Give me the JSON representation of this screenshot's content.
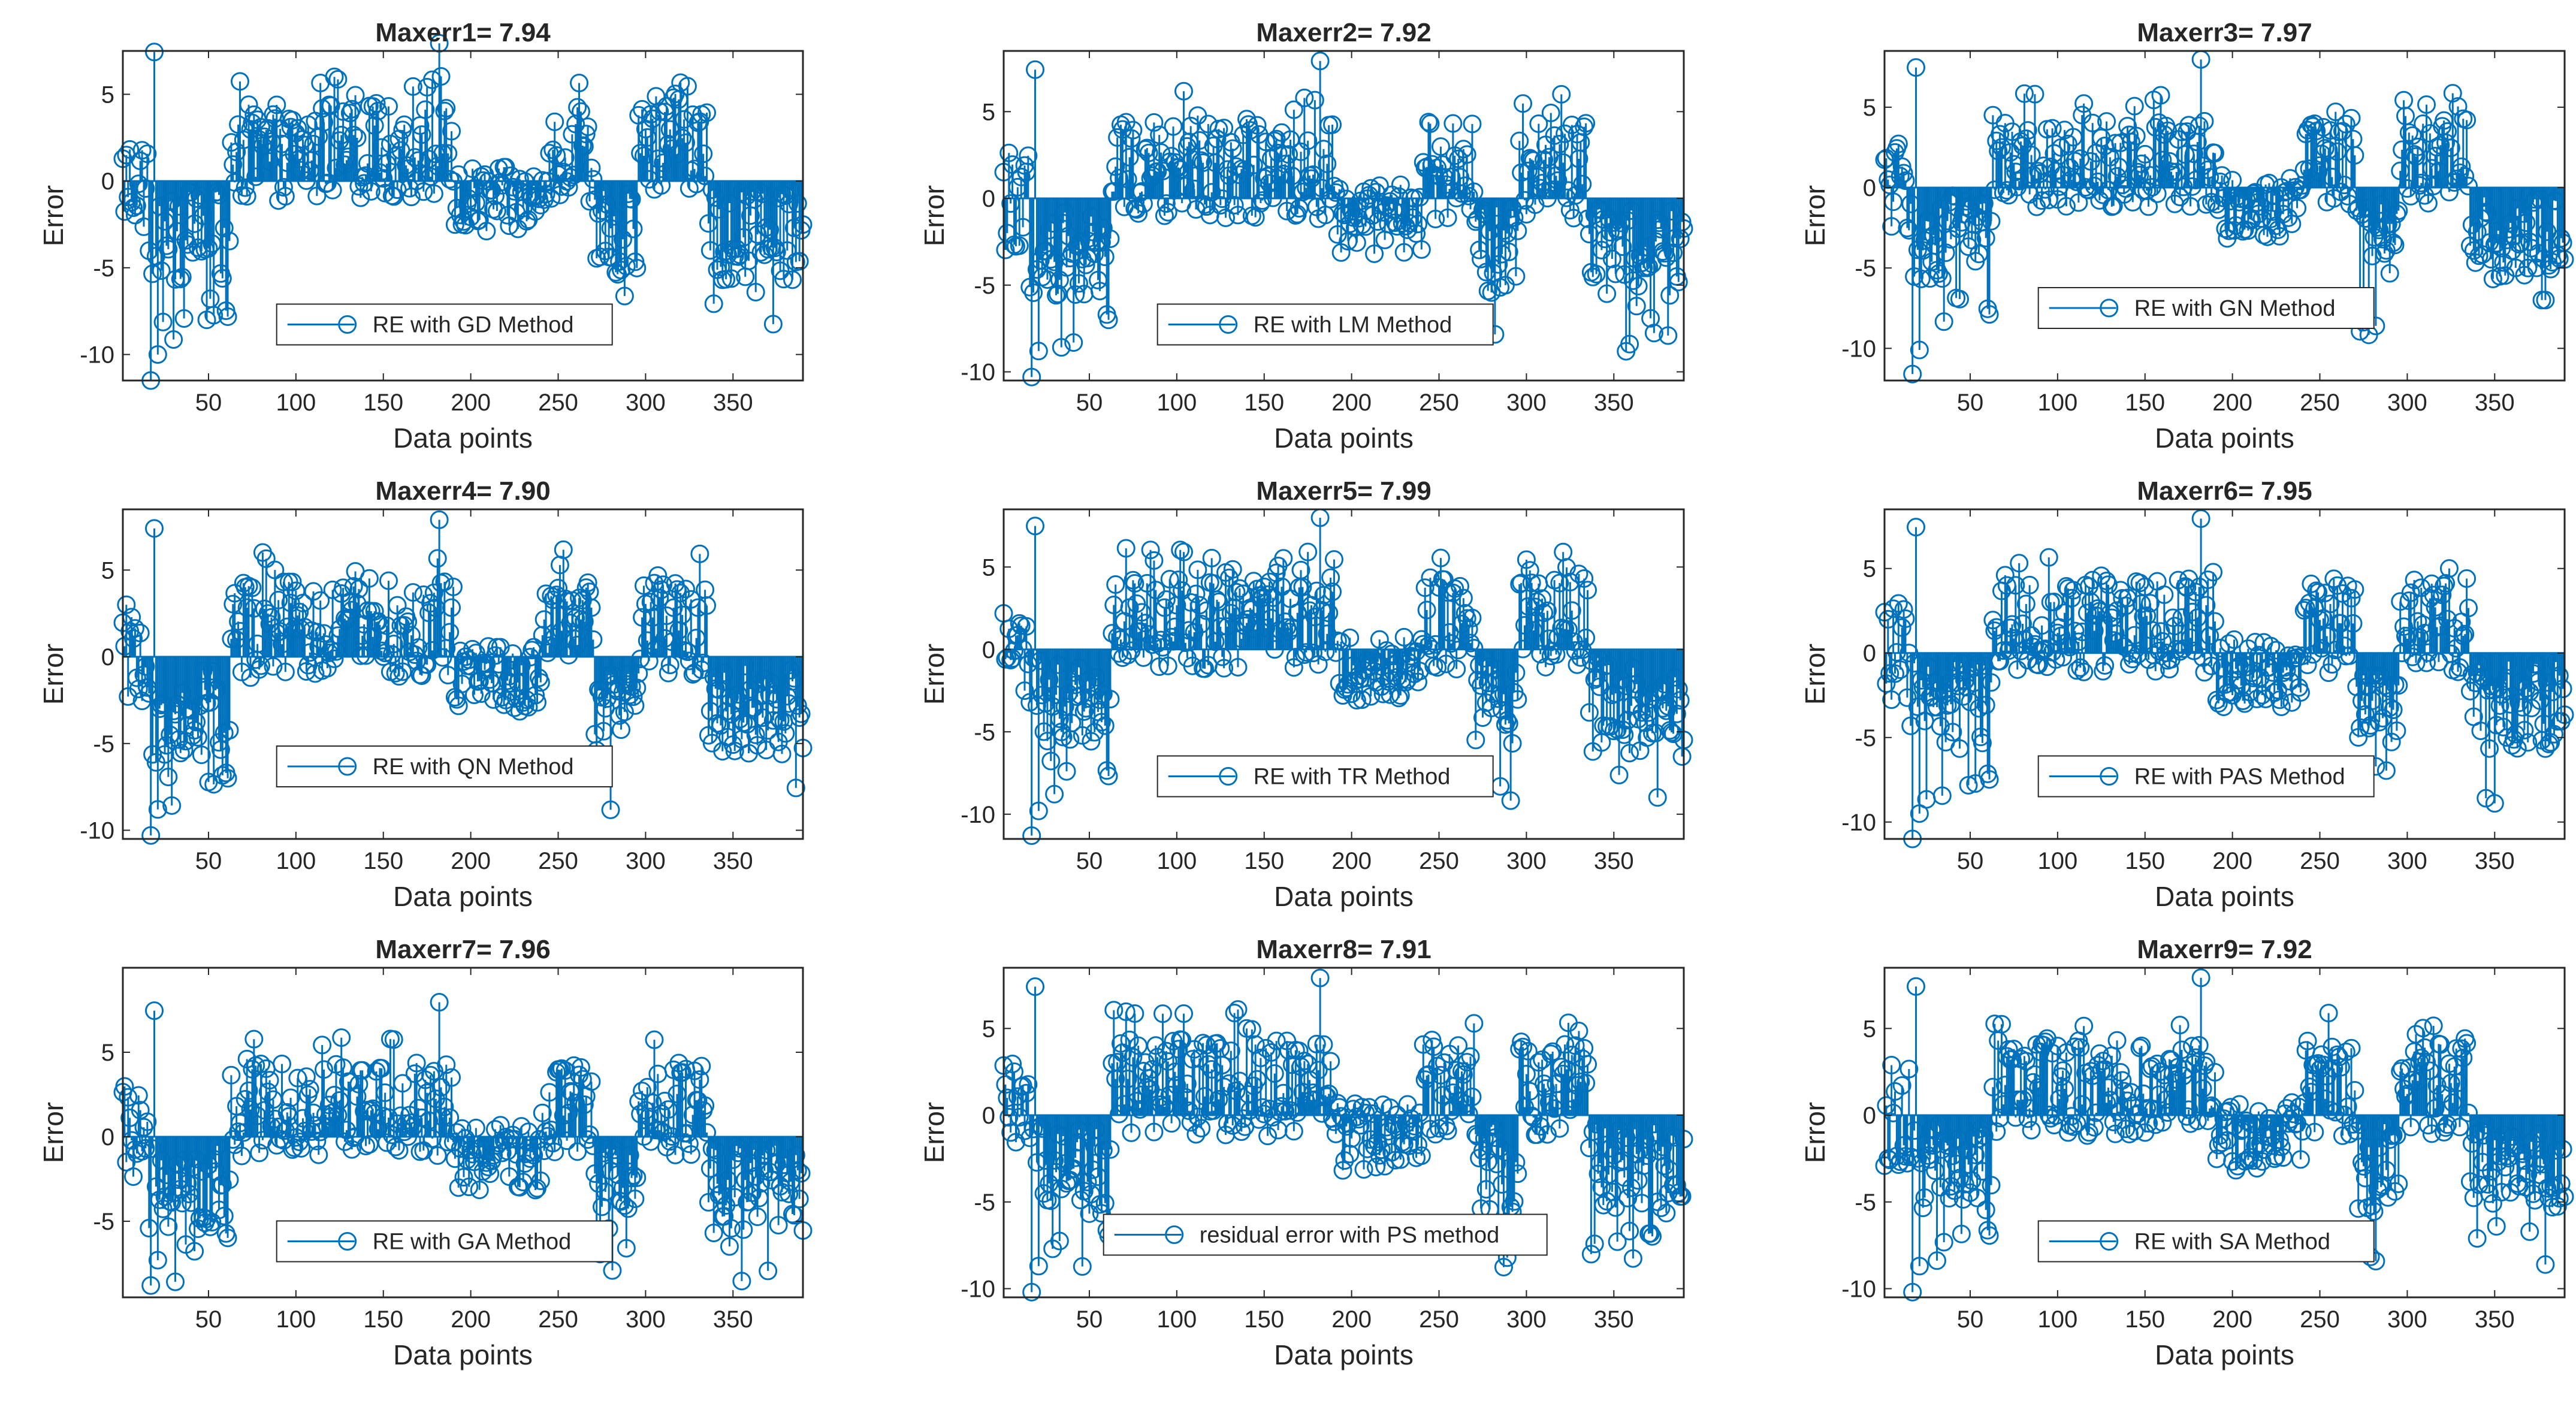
{
  "colors": {
    "series": "#0072bd",
    "axis": "#262626",
    "background": "#ffffff"
  },
  "chart_data": [
    {
      "type": "stem",
      "title": "Maxerr1= 7.94",
      "xlabel": "Data points",
      "ylabel": "Error",
      "legend": "RE with GD Method",
      "legend_position": "lower-middle",
      "xlim": [
        1,
        390
      ],
      "ylim": [
        -11.5,
        7.5
      ],
      "xticks": [
        50,
        100,
        150,
        200,
        250,
        300,
        350
      ],
      "yticks": [
        -10,
        -5,
        0,
        5
      ],
      "max_error": 7.94,
      "min_error": -11.5,
      "max_at": 182,
      "min_at": 17,
      "n_points": 390
    },
    {
      "type": "stem",
      "title": "Maxerr2= 7.92",
      "xlabel": "Data points",
      "ylabel": "Error",
      "legend": "RE with LM Method",
      "legend_position": "lower-middle",
      "xlim": [
        1,
        390
      ],
      "ylim": [
        -10.5,
        8.5
      ],
      "xticks": [
        50,
        100,
        150,
        200,
        250,
        300,
        350
      ],
      "yticks": [
        -10,
        -5,
        0,
        5
      ],
      "max_error": 7.92,
      "min_error": -10.3,
      "max_at": 182,
      "min_at": 17,
      "n_points": 390
    },
    {
      "type": "stem",
      "title": "Maxerr3= 7.97",
      "xlabel": "Data points",
      "ylabel": "Error",
      "legend": "RE with GN Method",
      "legend_position": "lower-middle",
      "xlim": [
        1,
        390
      ],
      "ylim": [
        -12,
        8.5
      ],
      "xticks": [
        50,
        100,
        150,
        200,
        250,
        300,
        350
      ],
      "yticks": [
        -10,
        -5,
        0,
        5
      ],
      "max_error": 7.97,
      "min_error": -11.6,
      "max_at": 182,
      "min_at": 17,
      "n_points": 390
    },
    {
      "type": "stem",
      "title": "Maxerr4= 7.90",
      "xlabel": "Data points",
      "ylabel": "Error",
      "legend": "RE with QN Method",
      "legend_position": "lower-middle",
      "xlim": [
        1,
        390
      ],
      "ylim": [
        -10.5,
        8.5
      ],
      "xticks": [
        50,
        100,
        150,
        200,
        250,
        300,
        350
      ],
      "yticks": [
        -10,
        -5,
        0,
        5
      ],
      "max_error": 7.9,
      "min_error": -10.3,
      "max_at": 182,
      "min_at": 17,
      "n_points": 390
    },
    {
      "type": "stem",
      "title": "Maxerr5= 7.99",
      "xlabel": "Data points",
      "ylabel": "Error",
      "legend": "RE with TR Method",
      "legend_position": "lower-middle",
      "xlim": [
        1,
        390
      ],
      "ylim": [
        -11.5,
        8.5
      ],
      "xticks": [
        50,
        100,
        150,
        200,
        250,
        300,
        350
      ],
      "yticks": [
        -10,
        -5,
        0,
        5
      ],
      "max_error": 7.99,
      "min_error": -11.3,
      "max_at": 182,
      "min_at": 17,
      "n_points": 390
    },
    {
      "type": "stem",
      "title": "Maxerr6= 7.95",
      "xlabel": "Data points",
      "ylabel": "Error",
      "legend": "RE with PAS Method",
      "legend_position": "lower-middle",
      "xlim": [
        1,
        390
      ],
      "ylim": [
        -11,
        8.5
      ],
      "xticks": [
        50,
        100,
        150,
        200,
        250,
        300,
        350
      ],
      "yticks": [
        -10,
        -5,
        0,
        5
      ],
      "max_error": 7.95,
      "min_error": -11.0,
      "max_at": 182,
      "min_at": 17,
      "n_points": 390
    },
    {
      "type": "stem",
      "title": "Maxerr7= 7.96",
      "xlabel": "Data points",
      "ylabel": "Error",
      "legend": "RE with GA Method",
      "legend_position": "lower-middle",
      "xlim": [
        1,
        390
      ],
      "ylim": [
        -9.5,
        10
      ],
      "xticks": [
        50,
        100,
        150,
        200,
        250,
        300,
        350
      ],
      "yticks": [
        -5,
        0,
        5
      ],
      "max_error": 7.96,
      "min_error": -8.8,
      "max_at": 182,
      "min_at": 17,
      "n_points": 390
    },
    {
      "type": "stem",
      "title": "Maxerr8= 7.91",
      "xlabel": "Data points",
      "ylabel": "Error",
      "legend": "residual error with PS method",
      "legend_position": "lower-middle",
      "xlim": [
        1,
        390
      ],
      "ylim": [
        -10.5,
        8.5
      ],
      "xticks": [
        50,
        100,
        150,
        200,
        250,
        300,
        350
      ],
      "yticks": [
        -10,
        -5,
        0,
        5
      ],
      "max_error": 7.91,
      "min_error": -10.2,
      "max_at": 182,
      "min_at": 17,
      "n_points": 390
    },
    {
      "type": "stem",
      "title": "Maxerr9= 7.92",
      "xlabel": "Data points",
      "ylabel": "Error",
      "legend": "RE with SA Method",
      "legend_position": "lower-middle",
      "xlim": [
        1,
        390
      ],
      "ylim": [
        -10.5,
        8.5
      ],
      "xticks": [
        50,
        100,
        150,
        200,
        250,
        300,
        350
      ],
      "yticks": [
        -10,
        -5,
        0,
        5
      ],
      "max_error": 7.92,
      "min_error": -10.2,
      "max_at": 182,
      "min_at": 17,
      "n_points": 390
    }
  ]
}
